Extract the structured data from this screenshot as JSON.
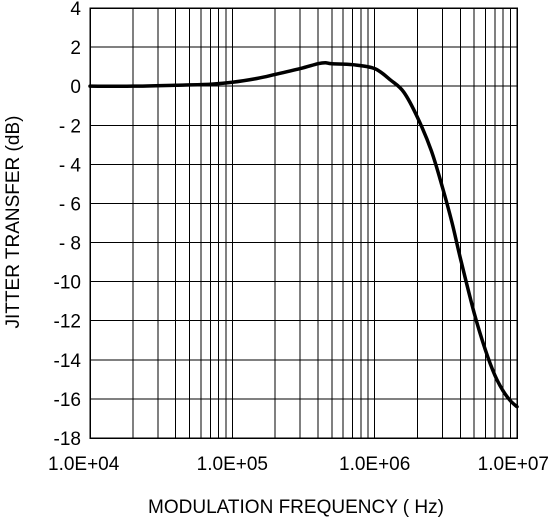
{
  "chart_data": {
    "type": "line",
    "title": "",
    "xlabel": "MODULATION FREQUENCY ( Hz)",
    "ylabel": "JITTER TRANSFER (dB)",
    "x_scale": "log",
    "xlim": [
      10000,
      10000000
    ],
    "ylim": [
      -18,
      4
    ],
    "grid": true,
    "legend": "none",
    "x_tick_values": [
      10000,
      100000,
      1000000,
      10000000
    ],
    "x_tick_labels": [
      "1.0E+04",
      "1.0E+05",
      "1.0E+06",
      "1.0E+07"
    ],
    "y_tick_values": [
      4,
      2,
      0,
      -2,
      -4,
      -6,
      -8,
      -10,
      -12,
      -14,
      -16,
      -18
    ],
    "y_tick_labels": [
      "4",
      "2",
      "0",
      "- 2",
      "- 4",
      "- 6",
      "- 8",
      "-10",
      "-12",
      "-14",
      "-16",
      "-18"
    ],
    "series": [
      {
        "line_color": "#000000",
        "x": [
          10000,
          20000,
          40000,
          70000,
          100000,
          150000,
          200000,
          300000,
          400000,
          450000,
          500000,
          700000,
          1000000,
          1300000,
          1600000,
          2000000,
          2500000,
          3000000,
          3500000,
          4000000,
          5000000,
          6000000,
          7000000,
          8000000,
          9000000,
          10000000
        ],
        "y": [
          0.0,
          0.0,
          0.05,
          0.1,
          0.2,
          0.4,
          0.6,
          0.9,
          1.15,
          1.2,
          1.15,
          1.1,
          0.9,
          0.3,
          -0.3,
          -1.6,
          -3.3,
          -5.2,
          -7.0,
          -8.8,
          -11.6,
          -13.5,
          -14.8,
          -15.6,
          -16.1,
          -16.4
        ]
      }
    ]
  }
}
